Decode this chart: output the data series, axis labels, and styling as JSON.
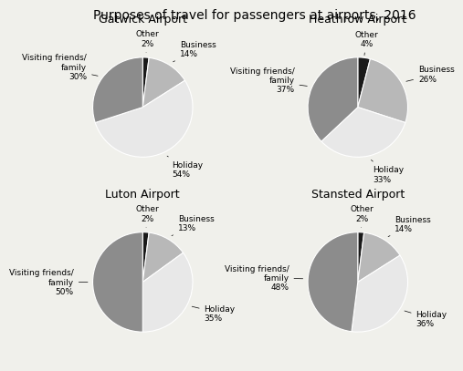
{
  "title": "Purposes of travel for passengers at airports, 2016",
  "airports": [
    {
      "name": "Gatwick Airport",
      "slices": [
        {
          "label": "Other\n2%",
          "value": 2,
          "color": "#1a1a1a"
        },
        {
          "label": "Business\n14%",
          "value": 14,
          "color": "#b8b8b8"
        },
        {
          "label": "Holiday\n54%",
          "value": 54,
          "color": "#e8e8e8"
        },
        {
          "label": "Visiting friends/\nfamily\n30%",
          "value": 30,
          "color": "#8c8c8c"
        }
      ]
    },
    {
      "name": "Heathrow Airport",
      "slices": [
        {
          "label": "Other\n4%",
          "value": 4,
          "color": "#1a1a1a"
        },
        {
          "label": "Business\n26%",
          "value": 26,
          "color": "#b8b8b8"
        },
        {
          "label": "Holiday\n33%",
          "value": 33,
          "color": "#e8e8e8"
        },
        {
          "label": "Visiting friends/\nfamily\n37%",
          "value": 37,
          "color": "#8c8c8c"
        }
      ]
    },
    {
      "name": "Luton Airport",
      "slices": [
        {
          "label": "Other\n2%",
          "value": 2,
          "color": "#1a1a1a"
        },
        {
          "label": "Business\n13%",
          "value": 13,
          "color": "#b8b8b8"
        },
        {
          "label": "Holiday\n35%",
          "value": 35,
          "color": "#e8e8e8"
        },
        {
          "label": "Visiting friends/\nfamily\n50%",
          "value": 50,
          "color": "#8c8c8c"
        }
      ]
    },
    {
      "name": "Stansted Airport",
      "slices": [
        {
          "label": "Other\n2%",
          "value": 2,
          "color": "#1a1a1a"
        },
        {
          "label": "Business\n14%",
          "value": 14,
          "color": "#b8b8b8"
        },
        {
          "label": "Holiday\n36%",
          "value": 36,
          "color": "#e8e8e8"
        },
        {
          "label": "Visiting friends/\nfamily\n48%",
          "value": 48,
          "color": "#8c8c8c"
        }
      ]
    }
  ],
  "background_color": "#f0f0eb",
  "title_fontsize": 10,
  "airport_name_fontsize": 9,
  "label_fontsize": 6.5
}
